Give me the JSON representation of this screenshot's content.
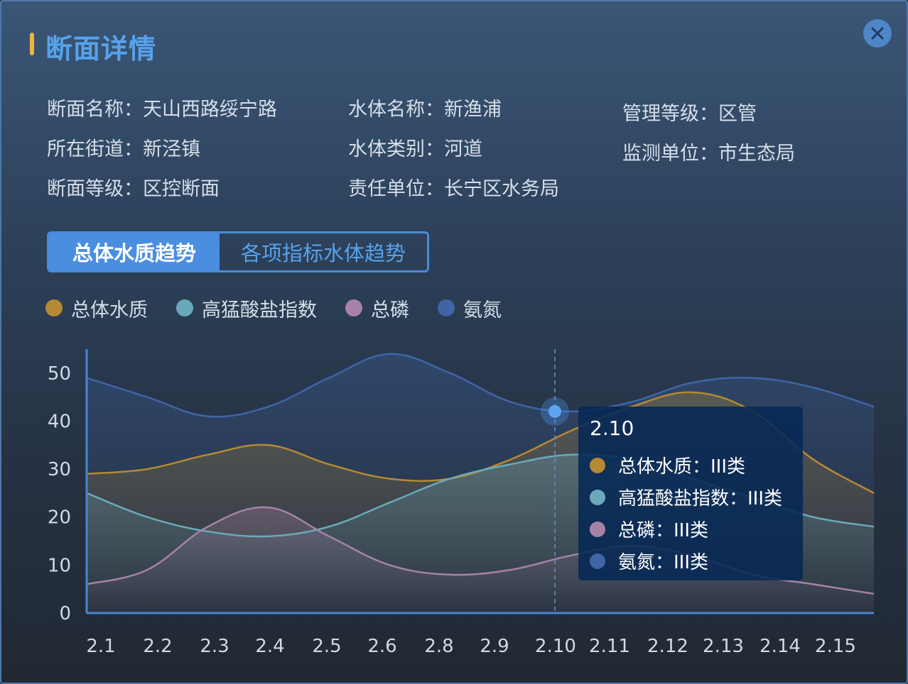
{
  "dialog": {
    "title": "断面详情"
  },
  "info": {
    "section_name_label": "断面名称：",
    "section_name": "天山西路绥宁路",
    "water_body_name_label": "水体名称：",
    "water_body_name": "新渔浦",
    "management_level_label": "管理等级：",
    "management_level": "区管",
    "street_label": "所在街道：",
    "street": "新泾镇",
    "water_type_label": "水体类别：",
    "water_type": "河道",
    "monitor_unit_label": "监测单位：",
    "monitor_unit": "市生态局",
    "section_level_label": "断面等级：",
    "section_level": "区控断面",
    "responsible_unit_label": "责任单位：",
    "responsible_unit": "长宁区水务局"
  },
  "tabs": [
    {
      "label": "总体水质趋势",
      "active": true
    },
    {
      "label": "各项指标水体趋势",
      "active": false
    }
  ],
  "colors": {
    "overall": "#b58a33",
    "permanganate": "#6aa9bc",
    "phosphorus": "#a882a6",
    "ammonia": "#3f65a6",
    "accent": "#58a2ec"
  },
  "chart_data": {
    "type": "area",
    "x": [
      "2.1",
      "2.2",
      "2.3",
      "2.4",
      "2.5",
      "2.6",
      "2.8",
      "2.9",
      "2.10",
      "2.11",
      "2.12",
      "2.13",
      "2.14",
      "2.15"
    ],
    "ylim": [
      0,
      55
    ],
    "yticks": [
      0,
      10,
      20,
      30,
      40,
      50
    ],
    "series": [
      {
        "name": "氨氮",
        "key": "ammonia",
        "values": [
          49,
          45,
          41,
          43,
          49,
          54,
          50,
          44,
          42,
          44,
          48,
          49,
          47,
          43
        ]
      },
      {
        "name": "总体水质",
        "key": "overall",
        "values": [
          29,
          30,
          33,
          35,
          31,
          28,
          28,
          32,
          38,
          43,
          46,
          42,
          32,
          25
        ]
      },
      {
        "name": "高猛酸盐指数",
        "key": "permanganate",
        "values": [
          25,
          20,
          17,
          16,
          18,
          23,
          28,
          31,
          33,
          32,
          28,
          24,
          20,
          18
        ]
      },
      {
        "name": "总磷",
        "key": "phosphorus",
        "values": [
          6,
          9,
          18,
          22,
          16,
          10,
          8,
          9,
          12,
          14,
          12,
          8,
          6,
          4
        ]
      }
    ],
    "highlight_index": 8,
    "tooltip": {
      "title": "2.10",
      "rows": [
        {
          "key": "overall",
          "label": "总体水质：III类"
        },
        {
          "key": "permanganate",
          "label": "高猛酸盐指数：III类"
        },
        {
          "key": "phosphorus",
          "label": "总磷：III类"
        },
        {
          "key": "ammonia",
          "label": "氨氮：III类"
        }
      ]
    }
  },
  "legend": [
    {
      "key": "overall",
      "label": "总体水质"
    },
    {
      "key": "permanganate",
      "label": "高猛酸盐指数"
    },
    {
      "key": "phosphorus",
      "label": "总磷"
    },
    {
      "key": "ammonia",
      "label": "氨氮"
    }
  ]
}
